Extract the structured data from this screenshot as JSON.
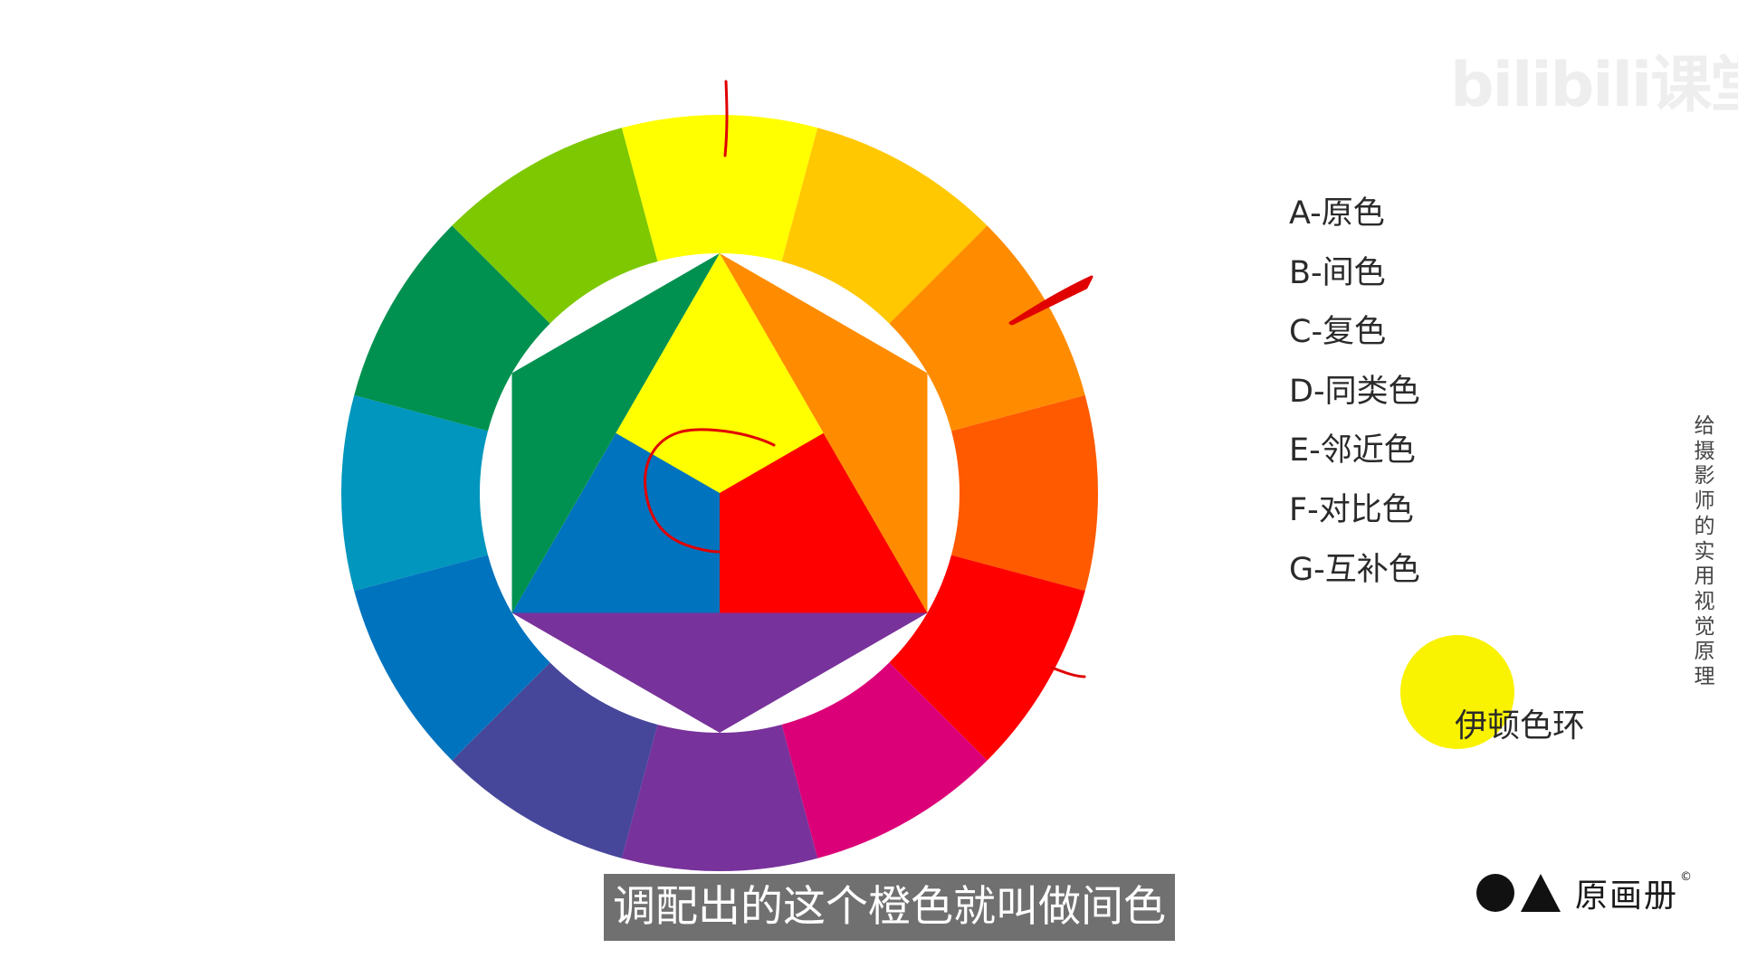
{
  "watermark": "bilibili课堂",
  "legend": {
    "items": [
      "A-原色",
      "B-间色",
      "C-复色",
      "D-同类色",
      "E-邻近色",
      "F-对比色",
      "G-互补色"
    ]
  },
  "wheel_title": "伊顿色环",
  "title_dot_color": "#F9F200",
  "vertical_caption": "给摄影师的实用视觉原理",
  "subtitle": "调配出的这个橙色就叫做间色",
  "brand": {
    "name": "原画册",
    "copyright": "©"
  },
  "color_wheel": {
    "outer_ring_colors": [
      "#FFFF00",
      "#FFC800",
      "#FF8C00",
      "#FF5A00",
      "#FF0000",
      "#DC0078",
      "#78329B",
      "#46469B",
      "#0073BE",
      "#0096BE",
      "#009150",
      "#7DC800"
    ],
    "inner": {
      "top_triangle": "#FFFF00",
      "right_triangle": "#FF0000",
      "left_triangle": "#0073BE",
      "top_right": "#FF8C00",
      "top_left": "#009150",
      "bottom": "#78329B"
    },
    "annotation_color": "#E00000"
  }
}
